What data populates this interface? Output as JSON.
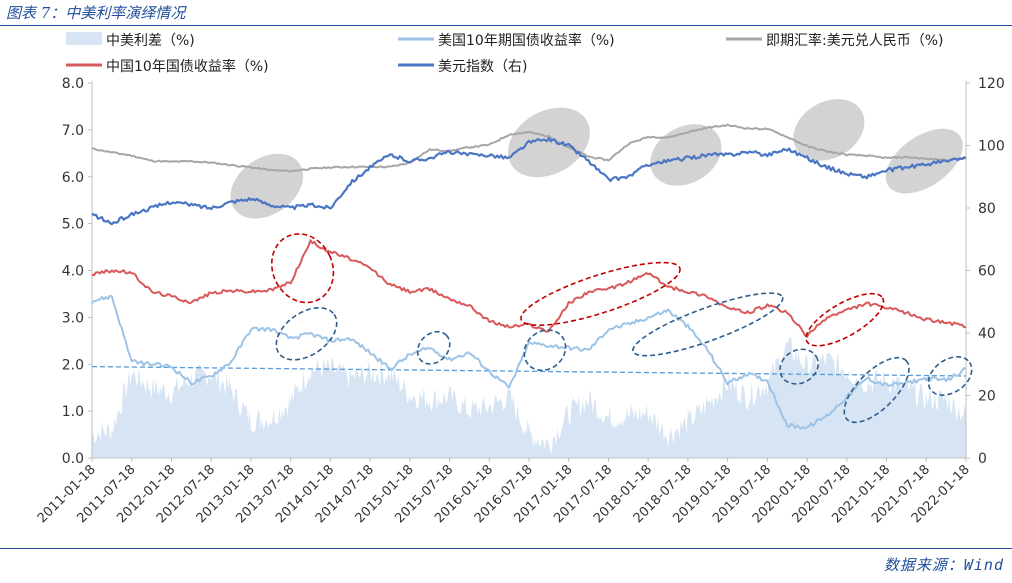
{
  "figure": {
    "title": "图表 7：中美利率演绎情况",
    "source": "数据来源：Wind"
  },
  "colors": {
    "spread": "#d6e4f4",
    "us10y": "#9dc3e6",
    "usdcny": "#a6a6a6",
    "cn10y": "#d9595b",
    "dxy": "#4a76c4",
    "trend": "#5b9bd5",
    "red_ellipse": "#c00000",
    "blue_ellipse": "#2e5d8c",
    "grey_ellipse": "#c0c0c0"
  },
  "chart_data": {
    "type": "line",
    "title": "图表 7：中美利率演绎情况",
    "x_tick_labels": [
      "2011-01-18",
      "2011-07-18",
      "2012-01-18",
      "2012-07-18",
      "2013-01-18",
      "2013-07-18",
      "2014-01-18",
      "2014-07-18",
      "2015-01-18",
      "2015-07-18",
      "2016-01-18",
      "2016-07-18",
      "2017-01-18",
      "2017-07-18",
      "2018-01-18",
      "2018-07-18",
      "2019-01-18",
      "2019-07-18",
      "2020-01-18",
      "2020-07-18",
      "2021-01-18",
      "2021-07-18",
      "2022-01-18"
    ],
    "y_left": {
      "min": 0,
      "max": 8,
      "ticks": [
        "0.0",
        "1.0",
        "2.0",
        "3.0",
        "4.0",
        "5.0",
        "6.0",
        "7.0",
        "8.0"
      ]
    },
    "y_right": {
      "min": 0,
      "max": 120,
      "ticks": [
        "0",
        "20",
        "40",
        "60",
        "80",
        "100",
        "120"
      ]
    },
    "legend": [
      {
        "key": "spread",
        "label": "中美利差（%)"
      },
      {
        "key": "us10y",
        "label": "美国10年期国债收益率（%)"
      },
      {
        "key": "usdcny",
        "label": "即期汇率:美元兑人民币（%)"
      },
      {
        "key": "cn10y",
        "label": "中国10年国债收益率（%)"
      },
      {
        "key": "dxy",
        "label": "美元指数（右)"
      }
    ],
    "series": [
      {
        "key": "usdcny",
        "name": "即期汇率:美元兑人民币（%)",
        "type": "line",
        "axis": "left",
        "x": [
          0,
          0.5,
          1,
          1.5,
          2,
          2.5,
          3,
          3.5,
          4,
          4.5,
          5,
          5.5,
          6,
          6.5,
          7,
          7.5,
          8,
          8.5,
          9,
          9.5,
          10,
          10.5,
          11,
          11.5,
          12,
          12.5,
          13,
          13.5,
          14,
          14.5,
          15,
          15.5,
          16,
          16.5,
          17,
          17.5,
          18,
          18.5,
          19,
          19.5,
          20,
          20.5,
          21,
          21.5,
          22
        ],
        "values": [
          6.6,
          6.52,
          6.45,
          6.34,
          6.32,
          6.33,
          6.3,
          6.25,
          6.2,
          6.14,
          6.12,
          6.17,
          6.2,
          6.21,
          6.21,
          6.21,
          6.3,
          6.58,
          6.55,
          6.63,
          6.68,
          6.9,
          6.95,
          6.86,
          6.62,
          6.43,
          6.35,
          6.7,
          6.85,
          6.84,
          6.95,
          7.05,
          7.1,
          7.03,
          7.02,
          6.85,
          6.65,
          6.54,
          6.47,
          6.45,
          6.4,
          6.42,
          6.38,
          6.36,
          6.4
        ]
      },
      {
        "key": "cn10y",
        "name": "中国10年国债收益率（%)",
        "type": "line",
        "axis": "left",
        "x": [
          0,
          0.5,
          1,
          1.5,
          2,
          2.5,
          3,
          3.5,
          4,
          4.5,
          5,
          5.5,
          6,
          6.5,
          7,
          7.5,
          8,
          8.5,
          9,
          9.5,
          10,
          10.5,
          11,
          11.5,
          12,
          12.5,
          13,
          13.5,
          14,
          14.5,
          15,
          15.5,
          16,
          16.5,
          17,
          17.5,
          18,
          18.5,
          19,
          19.5,
          20,
          20.5,
          21,
          21.5,
          22
        ],
        "values": [
          3.92,
          4.0,
          3.95,
          3.55,
          3.45,
          3.32,
          3.52,
          3.57,
          3.55,
          3.58,
          3.75,
          4.62,
          4.4,
          4.25,
          4.05,
          3.7,
          3.55,
          3.6,
          3.4,
          3.25,
          2.92,
          2.8,
          2.85,
          2.7,
          3.3,
          3.55,
          3.6,
          3.75,
          3.95,
          3.65,
          3.55,
          3.45,
          3.2,
          3.1,
          3.25,
          3.1,
          2.6,
          3.0,
          3.15,
          3.3,
          3.2,
          3.1,
          2.95,
          2.9,
          2.8
        ]
      },
      {
        "key": "us10y",
        "name": "美国10年期国债收益率（%)",
        "type": "line",
        "axis": "left",
        "x": [
          0,
          0.5,
          1,
          1.5,
          2,
          2.5,
          3,
          3.5,
          4,
          4.5,
          5,
          5.5,
          6,
          6.5,
          7,
          7.5,
          8,
          8.5,
          9,
          9.5,
          10,
          10.5,
          11,
          11.5,
          12,
          12.5,
          13,
          13.5,
          14,
          14.5,
          15,
          15.5,
          16,
          16.5,
          17,
          17.5,
          18,
          18.5,
          19,
          19.5,
          20,
          20.5,
          21,
          21.5,
          22
        ],
        "values": [
          3.35,
          3.45,
          2.05,
          2.0,
          1.95,
          1.6,
          1.75,
          2.05,
          2.75,
          2.75,
          2.55,
          2.65,
          2.5,
          2.55,
          2.25,
          1.9,
          2.2,
          2.35,
          2.1,
          2.25,
          1.85,
          1.5,
          2.45,
          2.4,
          2.35,
          2.3,
          2.75,
          2.85,
          3.0,
          3.15,
          2.8,
          2.3,
          1.6,
          1.8,
          1.65,
          0.7,
          0.65,
          0.9,
          1.3,
          1.7,
          1.55,
          1.6,
          1.7,
          1.65,
          1.9
        ]
      },
      {
        "key": "dxy",
        "name": "美元指数（右)",
        "type": "line",
        "axis": "right",
        "x": [
          0,
          0.5,
          1,
          1.5,
          2,
          2.5,
          3,
          3.5,
          4,
          4.5,
          5,
          5.5,
          6,
          6.5,
          7,
          7.5,
          8,
          8.5,
          9,
          9.5,
          10,
          10.5,
          11,
          11.5,
          12,
          12.5,
          13,
          13.5,
          14,
          14.5,
          15,
          15.5,
          16,
          16.5,
          17,
          17.5,
          18,
          18.5,
          19,
          19.5,
          20,
          20.5,
          21,
          21.5,
          22
        ],
        "values": [
          78,
          75,
          78,
          80,
          82,
          81,
          80,
          82,
          83,
          81,
          80,
          81,
          80,
          88,
          93,
          97,
          95,
          96,
          98,
          97,
          97,
          96,
          101,
          102,
          100,
          95,
          89,
          90,
          94,
          95,
          96,
          97,
          97,
          98,
          97,
          99,
          96,
          93,
          91,
          90,
          92,
          93,
          94,
          95,
          96
        ]
      }
    ],
    "spread": {
      "key": "spread",
      "name": "中美利差（%)",
      "type": "area",
      "axis": "left",
      "x": [
        0,
        0.5,
        1,
        1.5,
        2,
        2.5,
        3,
        3.5,
        4,
        4.5,
        5,
        5.5,
        6,
        6.5,
        7,
        7.5,
        8,
        8.5,
        9,
        9.5,
        10,
        10.5,
        11,
        11.5,
        12,
        12.5,
        13,
        13.5,
        14,
        14.5,
        15,
        15.5,
        16,
        16.5,
        17,
        17.5,
        18,
        18.5,
        19,
        19.5,
        20,
        20.5,
        21,
        21.5,
        22
      ],
      "values": [
        0.5,
        0.6,
        1.8,
        1.5,
        1.4,
        1.7,
        1.8,
        1.45,
        0.8,
        0.85,
        1.2,
        1.9,
        1.9,
        1.7,
        1.8,
        1.8,
        1.35,
        1.25,
        1.3,
        1.0,
        1.1,
        1.3,
        0.5,
        0.3,
        0.95,
        1.25,
        0.85,
        0.9,
        0.95,
        0.5,
        0.75,
        1.15,
        1.6,
        1.3,
        1.6,
        2.4,
        1.95,
        2.1,
        1.85,
        1.6,
        1.65,
        1.5,
        1.25,
        1.25,
        0.9
      ]
    },
    "trend_line": {
      "axis": "left",
      "x": [
        0,
        22
      ],
      "values": [
        1.95,
        1.75
      ]
    },
    "annotations": [
      {
        "type": "ellipse",
        "style": "grey",
        "cx": 4.4,
        "cy": 87,
        "rx": 1.0,
        "ry": 9,
        "axis": "right",
        "angle": -35
      },
      {
        "type": "ellipse",
        "style": "grey",
        "cx": 11.5,
        "cy": 101,
        "rx": 1.1,
        "ry": 10,
        "axis": "right",
        "angle": -30
      },
      {
        "type": "ellipse",
        "style": "grey",
        "cx": 14.95,
        "cy": 97,
        "rx": 0.95,
        "ry": 9,
        "axis": "right",
        "angle": -30
      },
      {
        "type": "ellipse",
        "style": "grey",
        "cx": 18.55,
        "cy": 105,
        "rx": 0.95,
        "ry": 9,
        "axis": "right",
        "angle": -30
      },
      {
        "type": "ellipse",
        "style": "grey",
        "cx": 20.95,
        "cy": 95,
        "rx": 1.1,
        "ry": 8,
        "axis": "right",
        "angle": -35
      },
      {
        "type": "ellipse",
        "style": "red",
        "cx": 5.3,
        "cy": 4.05,
        "rx": 0.75,
        "ry": 0.75,
        "axis": "left",
        "angle": -25
      },
      {
        "type": "ellipse",
        "style": "red",
        "cx": 12.8,
        "cy": 3.5,
        "rx": 2.1,
        "ry": 0.4,
        "axis": "left",
        "angle": -18
      },
      {
        "type": "ellipse",
        "style": "red",
        "cx": 18.95,
        "cy": 2.95,
        "rx": 1.1,
        "ry": 0.35,
        "axis": "left",
        "angle": -30
      },
      {
        "type": "ellipse",
        "style": "blue",
        "cx": 5.4,
        "cy": 2.65,
        "rx": 0.85,
        "ry": 0.45,
        "axis": "left",
        "angle": -35
      },
      {
        "type": "ellipse",
        "style": "blue",
        "cx": 8.6,
        "cy": 2.35,
        "rx": 0.45,
        "ry": 0.3,
        "axis": "left",
        "angle": -45
      },
      {
        "type": "ellipse",
        "style": "blue",
        "cx": 11.4,
        "cy": 2.3,
        "rx": 0.55,
        "ry": 0.4,
        "axis": "left",
        "angle": -40
      },
      {
        "type": "ellipse",
        "style": "blue",
        "cx": 15.5,
        "cy": 2.85,
        "rx": 2.0,
        "ry": 0.35,
        "axis": "left",
        "angle": -20
      },
      {
        "type": "ellipse",
        "style": "blue",
        "cx": 17.8,
        "cy": 1.95,
        "rx": 0.5,
        "ry": 0.35,
        "axis": "left",
        "angle": -30
      },
      {
        "type": "ellipse",
        "style": "blue",
        "cx": 19.75,
        "cy": 1.45,
        "rx": 1.05,
        "ry": 0.4,
        "axis": "left",
        "angle": -45
      },
      {
        "type": "ellipse",
        "style": "blue",
        "cx": 21.6,
        "cy": 1.75,
        "rx": 0.6,
        "ry": 0.35,
        "axis": "left",
        "angle": -35
      }
    ]
  }
}
